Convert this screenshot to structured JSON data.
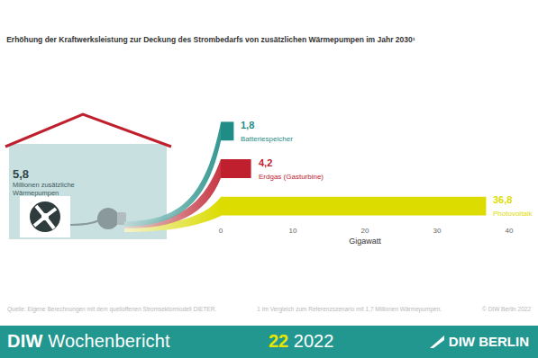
{
  "chart_data": {
    "type": "bar",
    "orientation": "horizontal",
    "title": "Erhöhung der Kraftwerksleistung zur Deckung des Strombedarfs von zusätzlichen Wärmepumpen im Jahr 2030¹",
    "x_label": "Gigawatt",
    "categories": [
      "Batteriespeicher",
      "Erdgas (Gasturbine)",
      "Photovoltaik"
    ],
    "values": [
      1.8,
      4.2,
      36.8
    ],
    "value_labels": [
      "1,8",
      "4,2",
      "36,8"
    ],
    "colors": [
      "#1f8c86",
      "#c0202e",
      "#dcdc00"
    ],
    "xlim": [
      0,
      40
    ],
    "xticks": [
      0,
      10,
      20,
      30,
      40
    ],
    "grid": false,
    "data_labels": true,
    "tick_labels": "x"
  },
  "house": {
    "value_label": "5,8",
    "text": "Millionen zusätzliche Wärmepumpen"
  },
  "source": "Quelle: Eigene Berechnungen mit dem quelloffenen Stromsektormodell DIETER.",
  "note": "1  Im Vergleich zum Referenzszenario mit 1,7 Millionen Wärmepumpen.",
  "copyright": "© DIW Berlin 2022",
  "footer": {
    "publication": "DIW Wochenbericht",
    "issue": "22",
    "year": "2022",
    "logo": "DIW BERLIN"
  }
}
